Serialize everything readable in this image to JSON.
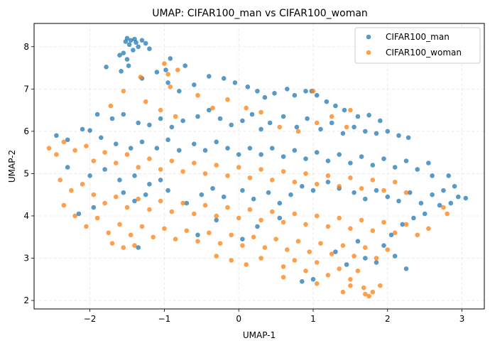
{
  "chart_data": {
    "type": "scatter",
    "title": "UMAP: CIFAR100_man vs CIFAR100_woman",
    "xlabel": "UMAP-1",
    "ylabel": "UMAP-2",
    "xlim": [
      -2.75,
      3.3
    ],
    "ylim": [
      1.8,
      8.55
    ],
    "xticks": [
      -2,
      -1,
      0,
      1,
      2,
      3
    ],
    "yticks": [
      2,
      3,
      4,
      5,
      6,
      7,
      8
    ],
    "xtick_labels": [
      "−2",
      "−1",
      "0",
      "1",
      "2",
      "3"
    ],
    "ytick_labels": [
      "2",
      "3",
      "4",
      "5",
      "6",
      "7",
      "8"
    ],
    "grid": true,
    "legend_position": "top-right",
    "series": [
      {
        "name": "CIFAR100_man",
        "color": "#1f77b4",
        "points": [
          [
            -1.5,
            8.2
          ],
          [
            -1.45,
            8.15
          ],
          [
            -1.4,
            8.18
          ],
          [
            -1.38,
            8.1
          ],
          [
            -1.52,
            8.12
          ],
          [
            -1.47,
            8.05
          ],
          [
            -1.35,
            8.0
          ],
          [
            -1.3,
            8.15
          ],
          [
            -1.55,
            7.85
          ],
          [
            -1.5,
            7.7
          ],
          [
            -1.48,
            7.55
          ],
          [
            -1.25,
            8.08
          ],
          [
            -1.6,
            7.8
          ],
          [
            -1.2,
            7.95
          ],
          [
            -1.42,
            7.92
          ],
          [
            -1.78,
            7.52
          ],
          [
            -1.58,
            7.42
          ],
          [
            -1.3,
            7.25
          ],
          [
            -1.1,
            7.4
          ],
          [
            -0.92,
            7.72
          ],
          [
            -0.98,
            7.45
          ],
          [
            -0.72,
            7.55
          ],
          [
            -0.95,
            7.15
          ],
          [
            -0.8,
            6.95
          ],
          [
            -0.6,
            7.1
          ],
          [
            -0.4,
            7.3
          ],
          [
            -0.2,
            7.25
          ],
          [
            -0.05,
            7.15
          ],
          [
            0.12,
            7.05
          ],
          [
            0.25,
            6.95
          ],
          [
            0.35,
            6.8
          ],
          [
            0.48,
            6.9
          ],
          [
            0.65,
            7.0
          ],
          [
            0.75,
            6.85
          ],
          [
            0.9,
            6.95
          ],
          [
            0.98,
            6.95
          ],
          [
            1.05,
            6.85
          ],
          [
            1.18,
            6.7
          ],
          [
            1.3,
            6.6
          ],
          [
            1.42,
            6.5
          ],
          [
            1.6,
            6.35
          ],
          [
            1.75,
            6.38
          ],
          [
            1.9,
            6.25
          ],
          [
            -1.9,
            6.4
          ],
          [
            -1.7,
            6.3
          ],
          [
            -1.55,
            6.4
          ],
          [
            -1.35,
            6.2
          ],
          [
            -1.2,
            6.15
          ],
          [
            -1.05,
            6.3
          ],
          [
            -0.9,
            6.1
          ],
          [
            -0.75,
            6.25
          ],
          [
            -0.55,
            6.35
          ],
          [
            -0.4,
            6.5
          ],
          [
            -0.25,
            6.3
          ],
          [
            -0.1,
            6.15
          ],
          [
            0.05,
            6.25
          ],
          [
            0.18,
            6.4
          ],
          [
            0.3,
            6.05
          ],
          [
            0.42,
            6.2
          ],
          [
            0.6,
            6.35
          ],
          [
            0.78,
            6.1
          ],
          [
            0.92,
            6.3
          ],
          [
            1.1,
            6.05
          ],
          [
            1.25,
            6.2
          ],
          [
            1.4,
            5.95
          ],
          [
            1.55,
            6.1
          ],
          [
            1.7,
            6.0
          ],
          [
            1.85,
            5.95
          ],
          [
            2.0,
            6.0
          ],
          [
            2.15,
            5.9
          ],
          [
            2.28,
            5.85
          ],
          [
            -2.45,
            5.9
          ],
          [
            -2.3,
            5.8
          ],
          [
            -2.1,
            6.05
          ],
          [
            -2.0,
            6.02
          ],
          [
            -1.85,
            5.85
          ],
          [
            -1.65,
            5.7
          ],
          [
            -1.45,
            5.6
          ],
          [
            -1.3,
            5.75
          ],
          [
            -1.1,
            5.6
          ],
          [
            -0.95,
            5.8
          ],
          [
            -0.8,
            5.55
          ],
          [
            -0.6,
            5.7
          ],
          [
            -0.45,
            5.55
          ],
          [
            -0.3,
            5.75
          ],
          [
            -0.15,
            5.6
          ],
          [
            0.0,
            5.45
          ],
          [
            0.15,
            5.6
          ],
          [
            0.3,
            5.45
          ],
          [
            0.45,
            5.6
          ],
          [
            0.6,
            5.4
          ],
          [
            0.75,
            5.55
          ],
          [
            0.9,
            5.35
          ],
          [
            1.05,
            5.5
          ],
          [
            1.2,
            5.3
          ],
          [
            1.35,
            5.45
          ],
          [
            1.5,
            5.25
          ],
          [
            1.65,
            5.4
          ],
          [
            1.8,
            5.2
          ],
          [
            1.95,
            5.35
          ],
          [
            2.1,
            5.15
          ],
          [
            2.25,
            5.3
          ],
          [
            2.4,
            5.1
          ],
          [
            2.55,
            5.25
          ],
          [
            2.6,
            4.95
          ],
          [
            -2.3,
            5.15
          ],
          [
            -2.0,
            4.95
          ],
          [
            -1.8,
            5.1
          ],
          [
            -1.6,
            4.85
          ],
          [
            -1.4,
            4.95
          ],
          [
            -1.2,
            4.75
          ],
          [
            -1.05,
            4.85
          ],
          [
            -1.55,
            4.55
          ],
          [
            -1.4,
            4.35
          ],
          [
            -1.25,
            4.5
          ],
          [
            -0.95,
            4.6
          ],
          [
            -0.7,
            4.3
          ],
          [
            -0.5,
            4.5
          ],
          [
            -0.35,
            4.65
          ],
          [
            -0.2,
            4.45
          ],
          [
            0.05,
            4.6
          ],
          [
            0.2,
            4.4
          ],
          [
            0.4,
            4.55
          ],
          [
            0.55,
            4.3
          ],
          [
            0.7,
            4.5
          ],
          [
            0.85,
            4.7
          ],
          [
            1.0,
            4.6
          ],
          [
            1.2,
            4.8
          ],
          [
            1.35,
            4.65
          ],
          [
            1.55,
            4.55
          ],
          [
            1.7,
            4.4
          ],
          [
            1.85,
            4.6
          ],
          [
            2.0,
            4.45
          ],
          [
            2.15,
            4.35
          ],
          [
            2.3,
            4.55
          ],
          [
            2.45,
            4.3
          ],
          [
            2.6,
            4.5
          ],
          [
            2.75,
            4.6
          ],
          [
            2.82,
            4.95
          ],
          [
            2.9,
            4.7
          ],
          [
            2.95,
            4.45
          ],
          [
            3.05,
            4.42
          ],
          [
            2.85,
            4.3
          ],
          [
            2.7,
            4.25
          ],
          [
            2.5,
            4.05
          ],
          [
            2.35,
            3.95
          ],
          [
            2.2,
            3.8
          ],
          [
            2.05,
            3.55
          ],
          [
            1.95,
            3.3
          ],
          [
            2.1,
            3.05
          ],
          [
            2.25,
            2.75
          ],
          [
            1.85,
            2.9
          ],
          [
            1.7,
            3.0
          ],
          [
            1.6,
            3.4
          ],
          [
            -2.15,
            4.05
          ],
          [
            -1.95,
            4.2
          ],
          [
            -1.35,
            3.25
          ],
          [
            -0.55,
            3.55
          ],
          [
            -0.3,
            3.9
          ],
          [
            0.05,
            3.45
          ],
          [
            0.25,
            3.75
          ],
          [
            0.55,
            3.95
          ],
          [
            0.85,
            2.45
          ],
          [
            1.0,
            2.5
          ],
          [
            1.45,
            2.85
          ],
          [
            1.3,
            3.15
          ]
        ]
      },
      {
        "name": "CIFAR100_woman",
        "color": "#ff7f0e",
        "points": [
          [
            -1.0,
            7.6
          ],
          [
            -0.95,
            7.35
          ],
          [
            -0.82,
            7.45
          ],
          [
            -0.92,
            7.05
          ],
          [
            -1.32,
            7.28
          ],
          [
            -1.55,
            6.95
          ],
          [
            -1.72,
            6.6
          ],
          [
            -1.25,
            6.7
          ],
          [
            -1.05,
            6.5
          ],
          [
            -0.85,
            6.35
          ],
          [
            -0.55,
            6.85
          ],
          [
            -0.35,
            6.55
          ],
          [
            -0.15,
            6.75
          ],
          [
            0.1,
            6.55
          ],
          [
            0.3,
            6.45
          ],
          [
            0.55,
            6.1
          ],
          [
            0.8,
            6.0
          ],
          [
            1.05,
            6.2
          ],
          [
            1.25,
            6.35
          ],
          [
            1.45,
            6.1
          ],
          [
            1.5,
            6.5
          ],
          [
            1.0,
            6.95
          ],
          [
            -2.55,
            5.6
          ],
          [
            -2.45,
            5.45
          ],
          [
            -2.35,
            5.75
          ],
          [
            -2.2,
            5.55
          ],
          [
            -2.05,
            5.65
          ],
          [
            -1.95,
            5.3
          ],
          [
            -1.8,
            5.5
          ],
          [
            -1.65,
            5.25
          ],
          [
            -1.5,
            5.45
          ],
          [
            -1.35,
            5.15
          ],
          [
            -1.2,
            5.35
          ],
          [
            -1.05,
            5.1
          ],
          [
            -0.9,
            5.3
          ],
          [
            -0.75,
            5.05
          ],
          [
            -0.6,
            5.25
          ],
          [
            -0.45,
            5.0
          ],
          [
            -0.3,
            5.2
          ],
          [
            -0.15,
            4.95
          ],
          [
            0.0,
            5.15
          ],
          [
            0.15,
            4.9
          ],
          [
            0.3,
            5.1
          ],
          [
            0.45,
            4.85
          ],
          [
            0.6,
            5.05
          ],
          [
            0.75,
            4.8
          ],
          [
            0.9,
            5.0
          ],
          [
            1.05,
            4.75
          ],
          [
            1.2,
            4.95
          ],
          [
            1.35,
            4.7
          ],
          [
            1.5,
            4.9
          ],
          [
            1.65,
            4.65
          ],
          [
            1.8,
            4.85
          ],
          [
            1.95,
            4.6
          ],
          [
            2.1,
            4.8
          ],
          [
            2.25,
            4.55
          ],
          [
            -2.4,
            4.85
          ],
          [
            -2.25,
            4.6
          ],
          [
            -2.1,
            4.75
          ],
          [
            -1.95,
            4.5
          ],
          [
            -1.8,
            4.3
          ],
          [
            -1.65,
            4.45
          ],
          [
            -1.5,
            4.2
          ],
          [
            -1.35,
            4.4
          ],
          [
            -1.2,
            4.15
          ],
          [
            -1.05,
            4.35
          ],
          [
            -0.9,
            4.1
          ],
          [
            -0.75,
            4.3
          ],
          [
            -0.6,
            4.05
          ],
          [
            -0.45,
            4.25
          ],
          [
            -0.3,
            4.0
          ],
          [
            -0.15,
            4.2
          ],
          [
            0.0,
            3.95
          ],
          [
            0.15,
            4.15
          ],
          [
            0.3,
            3.9
          ],
          [
            0.45,
            4.1
          ],
          [
            0.6,
            3.85
          ],
          [
            0.75,
            4.05
          ],
          [
            0.9,
            3.8
          ],
          [
            1.05,
            4.0
          ],
          [
            1.2,
            3.75
          ],
          [
            1.35,
            3.95
          ],
          [
            1.5,
            3.7
          ],
          [
            1.65,
            3.9
          ],
          [
            1.8,
            3.65
          ],
          [
            1.95,
            3.85
          ],
          [
            2.1,
            3.6
          ],
          [
            2.25,
            3.8
          ],
          [
            2.4,
            3.55
          ],
          [
            2.55,
            3.7
          ],
          [
            -2.35,
            4.25
          ],
          [
            -2.2,
            4.0
          ],
          [
            -2.05,
            3.75
          ],
          [
            -1.9,
            3.95
          ],
          [
            -1.75,
            3.6
          ],
          [
            -1.6,
            3.8
          ],
          [
            -1.45,
            3.55
          ],
          [
            -1.3,
            3.75
          ],
          [
            -1.15,
            3.5
          ],
          [
            -1.0,
            3.7
          ],
          [
            -0.85,
            3.45
          ],
          [
            -0.7,
            3.65
          ],
          [
            -0.55,
            3.4
          ],
          [
            -0.4,
            3.6
          ],
          [
            -0.25,
            3.35
          ],
          [
            -0.1,
            3.55
          ],
          [
            0.05,
            3.3
          ],
          [
            0.2,
            3.5
          ],
          [
            0.35,
            3.25
          ],
          [
            0.5,
            3.45
          ],
          [
            0.65,
            3.2
          ],
          [
            0.8,
            3.4
          ],
          [
            0.95,
            3.15
          ],
          [
            1.1,
            3.35
          ],
          [
            1.25,
            3.1
          ],
          [
            1.4,
            3.3
          ],
          [
            1.55,
            3.05
          ],
          [
            1.7,
            3.25
          ],
          [
            1.85,
            3.0
          ],
          [
            2.0,
            3.2
          ],
          [
            -1.7,
            3.35
          ],
          [
            -1.55,
            3.25
          ],
          [
            -1.4,
            3.3
          ],
          [
            -0.3,
            3.05
          ],
          [
            -0.1,
            2.95
          ],
          [
            0.1,
            2.85
          ],
          [
            0.3,
            3.0
          ],
          [
            0.6,
            2.8
          ],
          [
            0.75,
            2.95
          ],
          [
            0.9,
            2.7
          ],
          [
            1.05,
            2.9
          ],
          [
            1.2,
            2.6
          ],
          [
            1.35,
            2.75
          ],
          [
            1.5,
            2.5
          ],
          [
            1.6,
            2.7
          ],
          [
            1.4,
            2.2
          ],
          [
            1.5,
            2.35
          ],
          [
            1.7,
            2.15
          ],
          [
            1.75,
            2.1
          ],
          [
            1.8,
            2.2
          ],
          [
            1.68,
            2.3
          ],
          [
            1.9,
            2.35
          ],
          [
            1.05,
            2.4
          ],
          [
            0.6,
            2.55
          ],
          [
            2.75,
            4.2
          ],
          [
            2.8,
            4.05
          ]
        ]
      }
    ]
  }
}
